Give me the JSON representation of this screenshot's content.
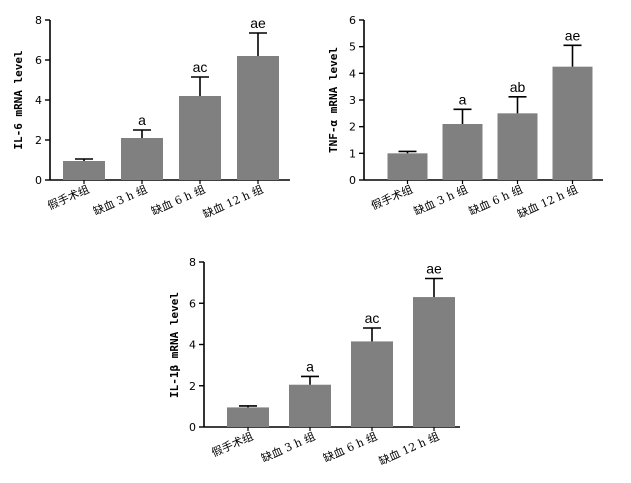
{
  "chart_data": [
    {
      "type": "bar",
      "ylabel": "IL-6 mRNA level",
      "ylim": [
        0,
        8
      ],
      "yticks": [
        0,
        2,
        4,
        6,
        8
      ],
      "categories": [
        "假手术组",
        "缺血 3 h 组",
        "缺血 6 h 组",
        "缺血 12 h 组"
      ],
      "values": [
        0.95,
        2.1,
        4.2,
        6.2
      ],
      "errors": [
        0.1,
        0.4,
        0.95,
        1.15
      ],
      "annotations": [
        "",
        "a",
        "ac",
        "ae"
      ],
      "grid": false,
      "bar_color": "#808080"
    },
    {
      "type": "bar",
      "ylabel": "TNF-α mRNA level",
      "ylim": [
        0,
        6
      ],
      "yticks": [
        0,
        1,
        2,
        3,
        4,
        5,
        6
      ],
      "categories": [
        "假手术组",
        "缺血 3 h 组",
        "缺血 6 h 组",
        "缺血 12 h 组"
      ],
      "values": [
        1.0,
        2.1,
        2.5,
        4.25
      ],
      "errors": [
        0.07,
        0.55,
        0.62,
        0.8
      ],
      "annotations": [
        "",
        "a",
        "ab",
        "ae"
      ],
      "grid": false,
      "bar_color": "#808080"
    },
    {
      "type": "bar",
      "ylabel": "IL-1β mRNA level",
      "ylim": [
        0,
        8
      ],
      "yticks": [
        0,
        2,
        4,
        6,
        8
      ],
      "categories": [
        "假手术组",
        "缺血 3 h 组",
        "缺血 6 h 组",
        "缺血 12 h 组"
      ],
      "values": [
        0.95,
        2.05,
        4.15,
        6.3
      ],
      "errors": [
        0.07,
        0.4,
        0.65,
        0.9
      ],
      "annotations": [
        "",
        "a",
        "ac",
        "ae"
      ],
      "grid": false,
      "bar_color": "#808080"
    }
  ]
}
